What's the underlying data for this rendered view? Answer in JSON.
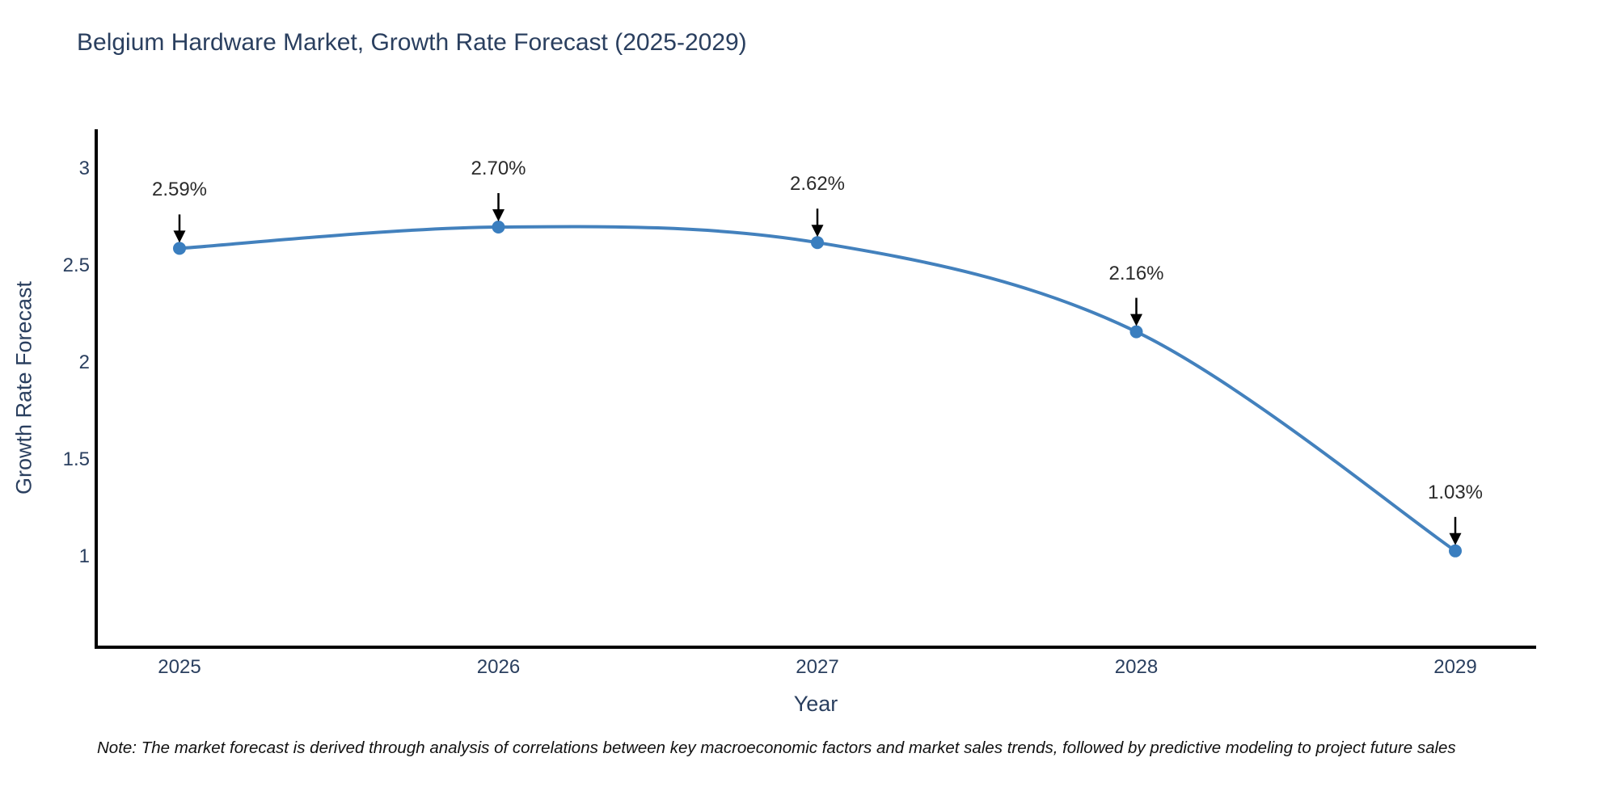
{
  "title": "Belgium Hardware Market, Growth Rate Forecast (2025-2029)",
  "note": "Note: The market forecast is derived through analysis of correlations between key macroeconomic factors and market sales trends, followed by predictive modeling to project future sales",
  "colors": {
    "title_text": "#2a3f5f",
    "line": "#4381bd",
    "marker": "#3a7ebf",
    "axis_line": "#000000",
    "arrow": "#000000",
    "annotation_text": "#2b2b2b",
    "note_text": "#111111",
    "background": "#ffffff"
  },
  "chart_data": {
    "type": "line",
    "title": "Belgium Hardware Market, Growth Rate Forecast (2025-2029)",
    "xlabel": "Year",
    "ylabel": "Growth Rate Forecast",
    "x": [
      2025,
      2026,
      2027,
      2028,
      2029
    ],
    "y": [
      2.59,
      2.7,
      2.62,
      2.16,
      1.03
    ],
    "point_labels": [
      "2.59%",
      "2.70%",
      "2.62%",
      "2.16%",
      "1.03%"
    ],
    "x_tick_labels": [
      "2025",
      "2026",
      "2027",
      "2028",
      "2029"
    ],
    "y_ticks": [
      3,
      2.5,
      2,
      1.5,
      1
    ],
    "y_tick_labels": [
      "3",
      "2.5",
      "2",
      "1.5",
      "1"
    ],
    "xlim": [
      2024.74,
      2029.26
    ],
    "ylim": [
      0.5,
      3.2
    ],
    "line_shape": "spline",
    "grid": false,
    "legend": "none",
    "annotation_style": "value labels with downward black arrows above each point"
  }
}
